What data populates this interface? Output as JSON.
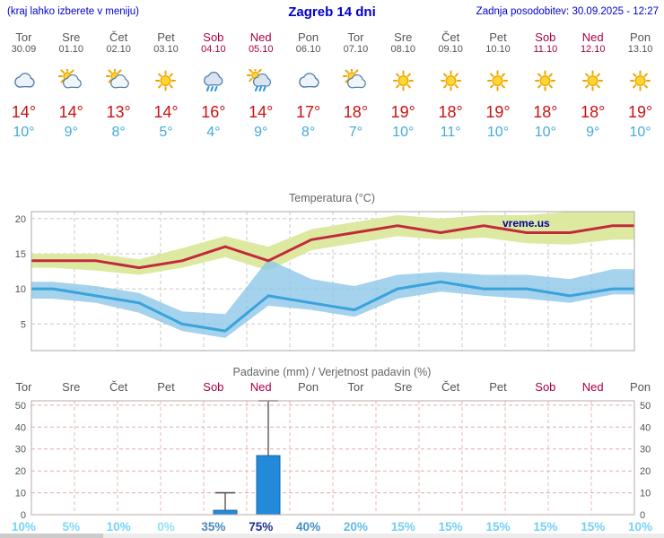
{
  "header": {
    "left_note": "(kraj lahko izberete v meniju)",
    "title": "Zagreb 14 dni",
    "updated": "Zadnja posodobitev: 30.09.2025 - 12:27"
  },
  "colors": {
    "link_blue": "#0000cc",
    "temp_max_red": "#cc1111",
    "temp_min_blue": "#44aadd",
    "weekend_red": "#aa0044",
    "weekday_gray": "#555555"
  },
  "days": [
    {
      "name": "Tor",
      "date": "30.09",
      "weekend": false,
      "icon": "cloudy",
      "tmax": "14°",
      "tmin": "10°"
    },
    {
      "name": "Sre",
      "date": "01.10",
      "weekend": false,
      "icon": "partly-cloudy",
      "tmax": "14°",
      "tmin": "9°"
    },
    {
      "name": "Čet",
      "date": "02.10",
      "weekend": false,
      "icon": "partly-cloudy",
      "tmax": "13°",
      "tmin": "8°"
    },
    {
      "name": "Pet",
      "date": "03.10",
      "weekend": false,
      "icon": "sunny",
      "tmax": "14°",
      "tmin": "5°"
    },
    {
      "name": "Sob",
      "date": "04.10",
      "weekend": true,
      "icon": "rain",
      "tmax": "16°",
      "tmin": "4°"
    },
    {
      "name": "Ned",
      "date": "05.10",
      "weekend": true,
      "icon": "showers",
      "tmax": "14°",
      "tmin": "9°"
    },
    {
      "name": "Pon",
      "date": "06.10",
      "weekend": false,
      "icon": "cloudy",
      "tmax": "17°",
      "tmin": "8°"
    },
    {
      "name": "Tor",
      "date": "07.10",
      "weekend": false,
      "icon": "partly-cloudy",
      "tmax": "18°",
      "tmin": "7°"
    },
    {
      "name": "Sre",
      "date": "08.10",
      "weekend": false,
      "icon": "sunny",
      "tmax": "19°",
      "tmin": "10°"
    },
    {
      "name": "Čet",
      "date": "09.10",
      "weekend": false,
      "icon": "sunny",
      "tmax": "18°",
      "tmin": "11°"
    },
    {
      "name": "Pet",
      "date": "10.10",
      "weekend": false,
      "icon": "sunny",
      "tmax": "19°",
      "tmin": "10°"
    },
    {
      "name": "Sob",
      "date": "11.10",
      "weekend": true,
      "icon": "sunny",
      "tmax": "18°",
      "tmin": "10°"
    },
    {
      "name": "Ned",
      "date": "12.10",
      "weekend": true,
      "icon": "sunny",
      "tmax": "18°",
      "tmin": "9°"
    },
    {
      "name": "Pon",
      "date": "13.10",
      "weekend": false,
      "icon": "sunny",
      "tmax": "19°",
      "tmin": "10°"
    }
  ],
  "chart_data": [
    {
      "type": "line",
      "title": "Temperatura (°C)",
      "watermark": "vreme.us",
      "categories": [
        "Tor",
        "Sre",
        "Čet",
        "Pet",
        "Sob",
        "Ned",
        "Pon",
        "Tor",
        "Sre",
        "Čet",
        "Pet",
        "Sob",
        "Ned",
        "Pon"
      ],
      "ylim": [
        1.2,
        21
      ],
      "yticks": [
        5,
        10,
        15,
        20
      ],
      "grid": true,
      "legend": "none",
      "series": [
        {
          "name": "tmax",
          "color": "#c22a3c",
          "values": [
            14,
            14,
            13,
            14,
            16,
            14,
            17,
            18,
            19,
            18,
            19,
            18,
            18,
            19
          ]
        },
        {
          "name": "tmax_band_upper",
          "values": [
            15,
            15,
            14.2,
            15.8,
            17.5,
            16,
            18.5,
            19.5,
            20.5,
            20,
            20.5,
            20.5,
            21,
            21.5
          ]
        },
        {
          "name": "tmax_band_lower",
          "values": [
            13,
            12.6,
            12,
            13,
            14.5,
            12.6,
            15.5,
            16.5,
            17.5,
            17,
            17.3,
            16.5,
            16.3,
            17
          ]
        },
        {
          "name": "tmin",
          "color": "#38a3dc",
          "values": [
            10,
            9,
            8,
            5,
            4,
            9,
            8,
            7,
            10,
            11,
            10,
            10,
            9,
            10
          ]
        },
        {
          "name": "tmin_band_upper",
          "values": [
            11,
            10.4,
            9.4,
            6.8,
            6.4,
            14.2,
            11.4,
            10.4,
            12,
            12.4,
            12,
            12,
            11.4,
            12.8
          ]
        },
        {
          "name": "tmin_band_lower",
          "values": [
            8.6,
            8,
            6.6,
            4,
            3,
            7.6,
            7,
            6,
            8.6,
            9.6,
            9,
            8.6,
            8,
            9.2
          ]
        }
      ],
      "band_colors": {
        "tmax_band": "#dde9a0",
        "tmin_band": "#8fc7e8"
      }
    },
    {
      "type": "bar",
      "title": "Padavine (mm) / Verjetnost padavin (%)",
      "categories": [
        "Tor",
        "Sre",
        "Čet",
        "Pet",
        "Sob",
        "Ned",
        "Pon",
        "Tor",
        "Sre",
        "Čet",
        "Pet",
        "Sob",
        "Ned",
        "Pon"
      ],
      "weekend_flags": [
        false,
        false,
        false,
        false,
        true,
        true,
        false,
        false,
        false,
        false,
        false,
        true,
        true,
        false
      ],
      "values": [
        0,
        0,
        0,
        0,
        2,
        27,
        0,
        0,
        0,
        0,
        0,
        0,
        0,
        0
      ],
      "whisker_max": [
        null,
        null,
        null,
        null,
        10,
        52,
        null,
        null,
        null,
        null,
        null,
        null,
        null,
        null
      ],
      "ylim": [
        0,
        52
      ],
      "yticks": [
        0,
        10,
        20,
        30,
        40,
        50
      ],
      "bar_color": "#2389d9",
      "probabilities": [
        {
          "label": "10%",
          "color": "#77d4f4"
        },
        {
          "label": "5%",
          "color": "#82daf5"
        },
        {
          "label": "10%",
          "color": "#77d4f4"
        },
        {
          "label": "0%",
          "color": "#8ee2f8"
        },
        {
          "label": "35%",
          "color": "#4e88bb"
        },
        {
          "label": "75%",
          "color": "#1b2f9a"
        },
        {
          "label": "40%",
          "color": "#4090c8"
        },
        {
          "label": "20%",
          "color": "#62bce4"
        },
        {
          "label": "15%",
          "color": "#74d0f0"
        },
        {
          "label": "15%",
          "color": "#74d0f0"
        },
        {
          "label": "15%",
          "color": "#74d0f0"
        },
        {
          "label": "15%",
          "color": "#74d0f0"
        },
        {
          "label": "15%",
          "color": "#74d0f0"
        },
        {
          "label": "10%",
          "color": "#77d4f4"
        }
      ]
    }
  ]
}
